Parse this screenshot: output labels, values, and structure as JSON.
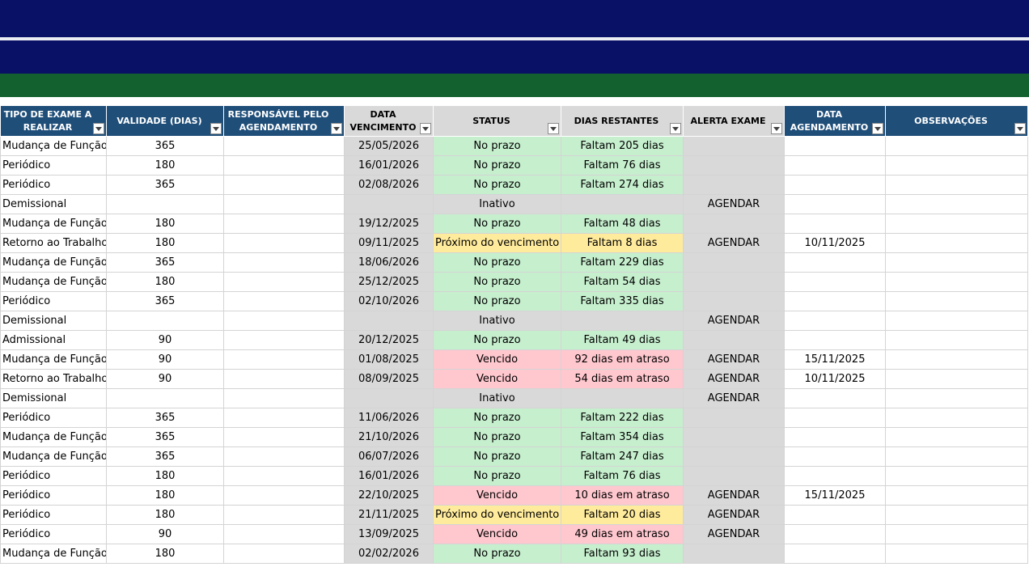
{
  "headers": [
    {
      "label": "TIPO DE EXAME A REALIZAR",
      "name": "col-tipo-exame",
      "style": "dk"
    },
    {
      "label": "VALIDADE (DIAS)",
      "name": "col-validade",
      "style": "dk"
    },
    {
      "label": "RESPONSÁVEL PELO AGENDAMENTO",
      "name": "col-responsavel",
      "style": "dk"
    },
    {
      "label": "DATA VENCIMENTO",
      "name": "col-data-vencimento",
      "style": "lt"
    },
    {
      "label": "STATUS",
      "name": "col-status",
      "style": "lt"
    },
    {
      "label": "DIAS RESTANTES",
      "name": "col-dias-restantes",
      "style": "lt"
    },
    {
      "label": "ALERTA EXAME",
      "name": "col-alerta-exame",
      "style": "lt"
    },
    {
      "label": "DATA AGENDAMENTO",
      "name": "col-data-agendamento",
      "style": "dk"
    },
    {
      "label": "OBSERVAÇÕES",
      "name": "col-observacoes",
      "style": "dk"
    }
  ],
  "status_colors": {
    "ok": "#c6efce",
    "ok_text": "#006100",
    "warn": "#ffeb9c",
    "warn_text": "#9c5700",
    "late": "#ffc7ce",
    "late_text": "#9c0006",
    "inactive": "#d9d9d9",
    "alert": "#bdd7ee"
  },
  "rows": [
    {
      "tipo": "Mudança de Função",
      "validade": "365",
      "responsavel": "",
      "vencimento": "25/05/2026",
      "status": "No prazo",
      "status_type": "ok",
      "dias": "Faltam 205 dias",
      "alerta": "",
      "agendamento": "",
      "obs": ""
    },
    {
      "tipo": "Periódico",
      "validade": "180",
      "responsavel": "",
      "vencimento": "16/01/2026",
      "status": "No prazo",
      "status_type": "ok",
      "dias": "Faltam 76 dias",
      "alerta": "",
      "agendamento": "",
      "obs": ""
    },
    {
      "tipo": "Periódico",
      "validade": "365",
      "responsavel": "",
      "vencimento": "02/08/2026",
      "status": "No prazo",
      "status_type": "ok",
      "dias": "Faltam 274 dias",
      "alerta": "",
      "agendamento": "",
      "obs": ""
    },
    {
      "tipo": "Demissional",
      "validade": "",
      "responsavel": "",
      "vencimento": "",
      "status": "Inativo",
      "status_type": "inactive",
      "dias": "",
      "alerta": "AGENDAR",
      "agendamento": "",
      "obs": ""
    },
    {
      "tipo": "Mudança de Função",
      "validade": "180",
      "responsavel": "",
      "vencimento": "19/12/2025",
      "status": "No prazo",
      "status_type": "ok",
      "dias": "Faltam 48 dias",
      "alerta": "",
      "agendamento": "",
      "obs": ""
    },
    {
      "tipo": "Retorno ao Trabalho",
      "validade": "180",
      "responsavel": "",
      "vencimento": "09/11/2025",
      "status": "Próximo do vencimento",
      "status_type": "warn",
      "dias": "Faltam 8 dias",
      "alerta": "AGENDAR",
      "agendamento": "10/11/2025",
      "obs": ""
    },
    {
      "tipo": "Mudança de Função",
      "validade": "365",
      "responsavel": "",
      "vencimento": "18/06/2026",
      "status": "No prazo",
      "status_type": "ok",
      "dias": "Faltam 229 dias",
      "alerta": "",
      "agendamento": "",
      "obs": ""
    },
    {
      "tipo": "Mudança de Função",
      "validade": "180",
      "responsavel": "",
      "vencimento": "25/12/2025",
      "status": "No prazo",
      "status_type": "ok",
      "dias": "Faltam 54 dias",
      "alerta": "",
      "agendamento": "",
      "obs": ""
    },
    {
      "tipo": "Periódico",
      "validade": "365",
      "responsavel": "",
      "vencimento": "02/10/2026",
      "status": "No prazo",
      "status_type": "ok",
      "dias": "Faltam 335 dias",
      "alerta": "",
      "agendamento": "",
      "obs": ""
    },
    {
      "tipo": "Demissional",
      "validade": "",
      "responsavel": "",
      "vencimento": "",
      "status": "Inativo",
      "status_type": "inactive",
      "dias": "",
      "alerta": "AGENDAR",
      "agendamento": "",
      "obs": ""
    },
    {
      "tipo": "Admissional",
      "validade": "90",
      "responsavel": "",
      "vencimento": "20/12/2025",
      "status": "No prazo",
      "status_type": "ok",
      "dias": "Faltam 49 dias",
      "alerta": "",
      "agendamento": "",
      "obs": ""
    },
    {
      "tipo": "Mudança de Função",
      "validade": "90",
      "responsavel": "",
      "vencimento": "01/08/2025",
      "status": "Vencido",
      "status_type": "late",
      "dias": "92 dias em atraso",
      "alerta": "AGENDAR",
      "agendamento": "15/11/2025",
      "obs": ""
    },
    {
      "tipo": "Retorno ao Trabalho",
      "validade": "90",
      "responsavel": "",
      "vencimento": "08/09/2025",
      "status": "Vencido",
      "status_type": "late",
      "dias": "54 dias em atraso",
      "alerta": "AGENDAR",
      "agendamento": "10/11/2025",
      "obs": ""
    },
    {
      "tipo": "Demissional",
      "validade": "",
      "responsavel": "",
      "vencimento": "",
      "status": "Inativo",
      "status_type": "inactive",
      "dias": "",
      "alerta": "AGENDAR",
      "agendamento": "",
      "obs": ""
    },
    {
      "tipo": "Periódico",
      "validade": "365",
      "responsavel": "",
      "vencimento": "11/06/2026",
      "status": "No prazo",
      "status_type": "ok",
      "dias": "Faltam 222 dias",
      "alerta": "",
      "agendamento": "",
      "obs": ""
    },
    {
      "tipo": "Mudança de Função",
      "validade": "365",
      "responsavel": "",
      "vencimento": "21/10/2026",
      "status": "No prazo",
      "status_type": "ok",
      "dias": "Faltam 354 dias",
      "alerta": "",
      "agendamento": "",
      "obs": ""
    },
    {
      "tipo": "Mudança de Função",
      "validade": "365",
      "responsavel": "",
      "vencimento": "06/07/2026",
      "status": "No prazo",
      "status_type": "ok",
      "dias": "Faltam 247 dias",
      "alerta": "",
      "agendamento": "",
      "obs": ""
    },
    {
      "tipo": "Periódico",
      "validade": "180",
      "responsavel": "",
      "vencimento": "16/01/2026",
      "status": "No prazo",
      "status_type": "ok",
      "dias": "Faltam 76 dias",
      "alerta": "",
      "agendamento": "",
      "obs": ""
    },
    {
      "tipo": "Periódico",
      "validade": "180",
      "responsavel": "",
      "vencimento": "22/10/2025",
      "status": "Vencido",
      "status_type": "late",
      "dias": "10 dias em atraso",
      "alerta": "AGENDAR",
      "agendamento": "15/11/2025",
      "obs": ""
    },
    {
      "tipo": "Periódico",
      "validade": "180",
      "responsavel": "",
      "vencimento": "21/11/2025",
      "status": "Próximo do vencimento",
      "status_type": "warn",
      "dias": "Faltam 20 dias",
      "alerta": "AGENDAR",
      "agendamento": "",
      "obs": ""
    },
    {
      "tipo": "Periódico",
      "validade": "90",
      "responsavel": "",
      "vencimento": "13/09/2025",
      "status": "Vencido",
      "status_type": "late",
      "dias": "49 dias em atraso",
      "alerta": "AGENDAR",
      "agendamento": "",
      "obs": ""
    },
    {
      "tipo": "Mudança de Função",
      "validade": "180",
      "responsavel": "",
      "vencimento": "02/02/2026",
      "status": "No prazo",
      "status_type": "ok",
      "dias": "Faltam 93 dias",
      "alerta": "",
      "agendamento": "",
      "obs": ""
    }
  ]
}
